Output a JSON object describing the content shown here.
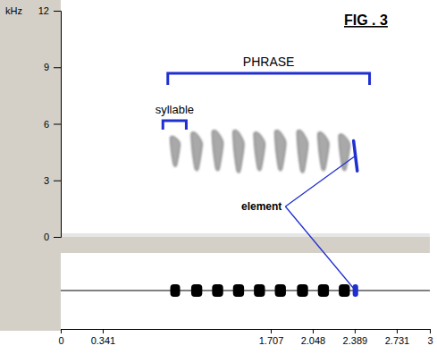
{
  "chart_data": {
    "type": "spectrogram",
    "title": "FIG . 3",
    "y_label": "kHz",
    "xlim": [
      0,
      3
    ],
    "xticks": [
      0,
      0.341,
      1.707,
      2.048,
      2.389,
      2.731,
      3
    ],
    "ylim": [
      0,
      12
    ],
    "yticks": [
      0,
      3,
      6,
      9,
      12
    ],
    "syllables": [
      {
        "start": 0.89,
        "end": 0.97,
        "f_min": 3.8,
        "f_max": 5.3
      },
      {
        "start": 1.06,
        "end": 1.15,
        "f_min": 3.6,
        "f_max": 5.5
      },
      {
        "start": 1.23,
        "end": 1.32,
        "f_min": 3.6,
        "f_max": 5.6
      },
      {
        "start": 1.4,
        "end": 1.49,
        "f_min": 3.5,
        "f_max": 5.6
      },
      {
        "start": 1.57,
        "end": 1.66,
        "f_min": 3.6,
        "f_max": 5.5
      },
      {
        "start": 1.74,
        "end": 1.83,
        "f_min": 3.6,
        "f_max": 5.6
      },
      {
        "start": 1.92,
        "end": 2.01,
        "f_min": 3.5,
        "f_max": 5.6
      },
      {
        "start": 2.09,
        "end": 2.18,
        "f_min": 3.6,
        "f_max": 5.5
      },
      {
        "start": 2.26,
        "end": 2.35,
        "f_min": 3.6,
        "f_max": 5.4
      }
    ],
    "element": {
      "label": "element",
      "start": 2.38,
      "end": 2.41,
      "f_start": 5.1,
      "f_end": 3.5
    },
    "annotations": [
      {
        "text": "PHRASE",
        "start": 0.87,
        "end": 2.51
      },
      {
        "text": "syllable",
        "start": 0.83,
        "end": 1.02
      }
    ]
  }
}
